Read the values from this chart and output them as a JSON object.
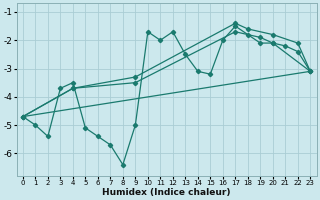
{
  "bg_color": "#cce8ed",
  "grid_color": "#aacdd4",
  "line_color": "#1a7a6e",
  "jagged_x": [
    0,
    1,
    2,
    3,
    4,
    5,
    6,
    7,
    8,
    9,
    10,
    11,
    12,
    13,
    14,
    15,
    16,
    17,
    18,
    19,
    20,
    21,
    22,
    23
  ],
  "jagged_y": [
    -4.7,
    -5.0,
    -5.4,
    -3.7,
    -3.5,
    -5.1,
    -5.4,
    -5.7,
    -6.4,
    -5.0,
    -1.7,
    -2.0,
    -1.7,
    -2.5,
    -3.1,
    -3.2,
    -2.0,
    -1.5,
    -1.8,
    -2.1,
    -2.1,
    -2.2,
    -2.4,
    -3.1
  ],
  "line2_x": [
    0,
    4,
    9,
    17,
    18,
    20,
    22,
    23
  ],
  "line2_y": [
    -4.7,
    -3.7,
    -3.3,
    -1.4,
    -1.6,
    -1.8,
    -2.1,
    -3.1
  ],
  "line3_x": [
    0,
    4,
    9,
    17,
    19,
    20,
    23
  ],
  "line3_y": [
    -4.7,
    -3.7,
    -3.5,
    -1.7,
    -1.9,
    -2.1,
    -3.1
  ],
  "line4_x": [
    0,
    23
  ],
  "line4_y": [
    -4.7,
    -3.1
  ],
  "xlabel": "Humidex (Indice chaleur)",
  "xlim": [
    -0.5,
    23.5
  ],
  "ylim": [
    -6.8,
    -0.7
  ],
  "yticks": [
    -1,
    -2,
    -3,
    -4,
    -5,
    -6
  ],
  "xticks": [
    0,
    1,
    2,
    3,
    4,
    5,
    6,
    7,
    8,
    9,
    10,
    11,
    12,
    13,
    14,
    15,
    16,
    17,
    18,
    19,
    20,
    21,
    22,
    23
  ]
}
